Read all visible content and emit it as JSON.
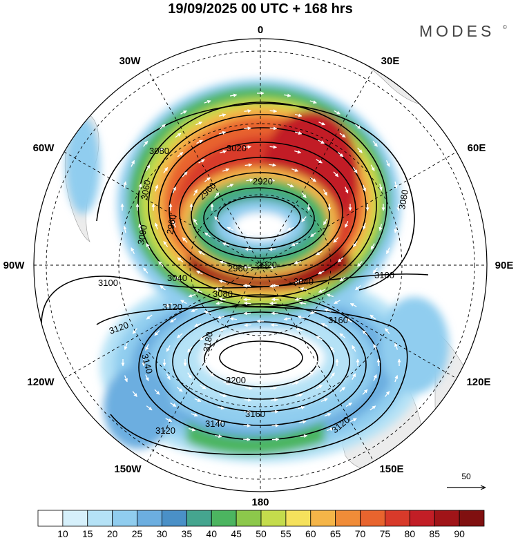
{
  "title": "19/09/2025  00 UTC  + 168 hrs",
  "brand": {
    "name": "MODES",
    "mark": "©"
  },
  "longitude_labels": {
    "n0": "0",
    "e30": "30E",
    "e60": "60E",
    "e90": "90E",
    "e120": "120E",
    "e150": "150E",
    "s180": "180",
    "w150": "150W",
    "w120": "120W",
    "w90": "90W",
    "w60": "60W",
    "w30": "30W"
  },
  "height_contour_labels": {
    "h2920a": "2920",
    "h2920b": "2920",
    "h2960a": "2960",
    "h2960b": "2960",
    "h2960c": "2960",
    "h3020": "3020",
    "h3040a": "3040",
    "h3040b": "3040",
    "h3060": "3060",
    "h3080a": "3080",
    "h3080b": "3080",
    "h3080c": "3080",
    "h3090": "3090",
    "h3100a": "3100",
    "h3100b": "3100",
    "h3120a": "3120",
    "h3120b": "3120",
    "h3120c": "3120",
    "h3120d": "3120",
    "h3140a": "3140",
    "h3140b": "3140",
    "h3160a": "3160",
    "h3160b": "3160",
    "h3180": "3180",
    "h3200": "3200"
  },
  "reference_vector": {
    "label": "50"
  },
  "colorbar": {
    "ticks": [
      "10",
      "15",
      "20",
      "25",
      "30",
      "35",
      "40",
      "45",
      "50",
      "55",
      "60",
      "65",
      "70",
      "75",
      "80",
      "85",
      "90"
    ],
    "colors": [
      "#ffffff",
      "#d6f0fb",
      "#b5e2f6",
      "#90cdef",
      "#6caee0",
      "#4a90c7",
      "#45a58f",
      "#4cb560",
      "#8cc84b",
      "#c4dc4c",
      "#f5e15c",
      "#f5b548",
      "#f08c38",
      "#e8642e",
      "#d83a2a",
      "#c21e26",
      "#a01418",
      "#801010"
    ]
  }
}
